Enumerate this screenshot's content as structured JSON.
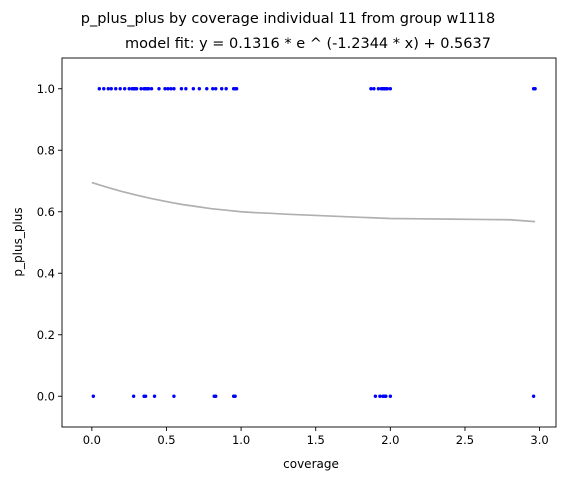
{
  "chart_data": {
    "type": "scatter",
    "title": "p_plus_plus by coverage individual 11 from group w1118",
    "subtitle": "model fit: y = 0.1316 * e ^ (-1.2344 * x) + 0.5637",
    "xlabel": "coverage",
    "ylabel": "p_plus_plus",
    "xlim": [
      -0.2,
      3.11
    ],
    "ylim": [
      -0.1,
      1.1
    ],
    "xticks": [
      {
        "value": 0.0,
        "label": "0.0"
      },
      {
        "value": 0.5,
        "label": "0.5"
      },
      {
        "value": 1.0,
        "label": "1.0"
      },
      {
        "value": 1.5,
        "label": "1.5"
      },
      {
        "value": 2.0,
        "label": "2.0"
      },
      {
        "value": 2.5,
        "label": "2.5"
      },
      {
        "value": 3.0,
        "label": "3.0"
      }
    ],
    "yticks": [
      {
        "value": 0.0,
        "label": "0.0"
      },
      {
        "value": 0.2,
        "label": "0.2"
      },
      {
        "value": 0.4,
        "label": "0.4"
      },
      {
        "value": 0.6,
        "label": "0.6"
      },
      {
        "value": 0.8,
        "label": "0.8"
      },
      {
        "value": 1.0,
        "label": "1.0"
      }
    ],
    "grid": false,
    "legend": "none",
    "series": [
      {
        "type": "scatter",
        "color": "#0000ff",
        "points": [
          {
            "x": 0.05,
            "y": 1.0
          },
          {
            "x": 0.08,
            "y": 1.0
          },
          {
            "x": 0.11,
            "y": 1.0
          },
          {
            "x": 0.13,
            "y": 1.0
          },
          {
            "x": 0.16,
            "y": 1.0
          },
          {
            "x": 0.19,
            "y": 1.0
          },
          {
            "x": 0.22,
            "y": 1.0
          },
          {
            "x": 0.25,
            "y": 1.0
          },
          {
            "x": 0.27,
            "y": 1.0
          },
          {
            "x": 0.28,
            "y": 1.0
          },
          {
            "x": 0.29,
            "y": 1.0
          },
          {
            "x": 0.3,
            "y": 1.0
          },
          {
            "x": 0.33,
            "y": 1.0
          },
          {
            "x": 0.35,
            "y": 1.0
          },
          {
            "x": 0.36,
            "y": 1.0
          },
          {
            "x": 0.37,
            "y": 1.0
          },
          {
            "x": 0.38,
            "y": 1.0
          },
          {
            "x": 0.4,
            "y": 1.0
          },
          {
            "x": 0.45,
            "y": 1.0
          },
          {
            "x": 0.49,
            "y": 1.0
          },
          {
            "x": 0.51,
            "y": 1.0
          },
          {
            "x": 0.53,
            "y": 1.0
          },
          {
            "x": 0.55,
            "y": 1.0
          },
          {
            "x": 0.6,
            "y": 1.0
          },
          {
            "x": 0.63,
            "y": 1.0
          },
          {
            "x": 0.68,
            "y": 1.0
          },
          {
            "x": 0.72,
            "y": 1.0
          },
          {
            "x": 0.77,
            "y": 1.0
          },
          {
            "x": 0.81,
            "y": 1.0
          },
          {
            "x": 0.83,
            "y": 1.0
          },
          {
            "x": 0.87,
            "y": 1.0
          },
          {
            "x": 0.9,
            "y": 1.0
          },
          {
            "x": 0.95,
            "y": 1.0
          },
          {
            "x": 0.96,
            "y": 1.0
          },
          {
            "x": 0.97,
            "y": 1.0
          },
          {
            "x": 1.87,
            "y": 1.0
          },
          {
            "x": 1.89,
            "y": 1.0
          },
          {
            "x": 1.92,
            "y": 1.0
          },
          {
            "x": 1.94,
            "y": 1.0
          },
          {
            "x": 1.95,
            "y": 1.0
          },
          {
            "x": 1.96,
            "y": 1.0
          },
          {
            "x": 1.97,
            "y": 1.0
          },
          {
            "x": 1.98,
            "y": 1.0
          },
          {
            "x": 2.0,
            "y": 1.0
          },
          {
            "x": 2.96,
            "y": 1.0
          },
          {
            "x": 2.97,
            "y": 1.0
          },
          {
            "x": 0.01,
            "y": 0.0
          },
          {
            "x": 0.28,
            "y": 0.0
          },
          {
            "x": 0.35,
            "y": 0.0
          },
          {
            "x": 0.36,
            "y": 0.0
          },
          {
            "x": 0.42,
            "y": 0.0
          },
          {
            "x": 0.55,
            "y": 0.0
          },
          {
            "x": 0.82,
            "y": 0.0
          },
          {
            "x": 0.83,
            "y": 0.0
          },
          {
            "x": 0.95,
            "y": 0.0
          },
          {
            "x": 0.96,
            "y": 0.0
          },
          {
            "x": 1.9,
            "y": 0.0
          },
          {
            "x": 1.93,
            "y": 0.0
          },
          {
            "x": 1.95,
            "y": 0.0
          },
          {
            "x": 1.96,
            "y": 0.0
          },
          {
            "x": 1.97,
            "y": 0.0
          },
          {
            "x": 2.0,
            "y": 0.0
          },
          {
            "x": 2.96,
            "y": 0.0
          }
        ]
      },
      {
        "type": "line",
        "color": "#b0b0b0",
        "x": [
          0.0,
          0.1,
          0.2,
          0.3,
          0.4,
          0.5,
          0.6,
          0.7,
          0.8,
          0.9,
          1.0,
          1.1,
          1.2,
          1.3,
          1.4,
          1.5,
          1.6,
          1.7,
          1.8,
          1.9,
          2.0,
          2.2,
          2.4,
          2.6,
          2.8,
          2.97
        ],
        "y": [
          0.695,
          0.68,
          0.666,
          0.654,
          0.643,
          0.633,
          0.624,
          0.617,
          0.61,
          0.605,
          0.6,
          0.597,
          0.595,
          0.592,
          0.59,
          0.588,
          0.586,
          0.584,
          0.582,
          0.58,
          0.578,
          0.577,
          0.576,
          0.575,
          0.574,
          0.568
        ]
      }
    ]
  }
}
